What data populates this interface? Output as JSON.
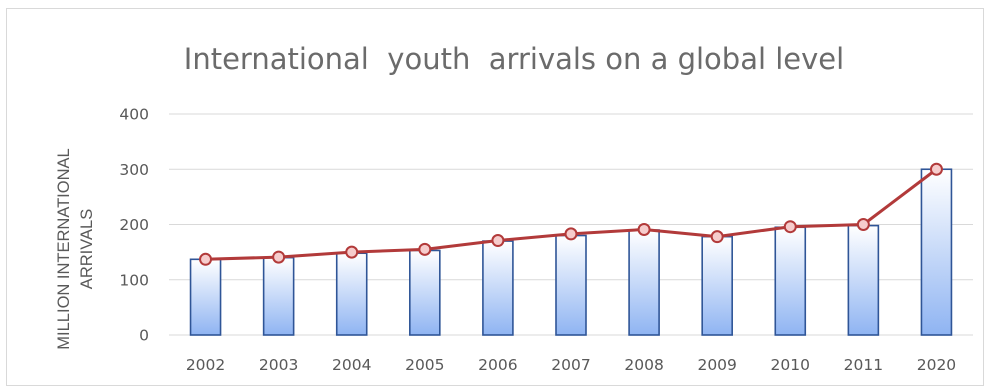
{
  "chart_data": {
    "type": "bar",
    "title": "International  youth  arrivals on a global level",
    "ylabel_lines": [
      "MILLION INTERNATIONAL",
      "ARRIVALS"
    ],
    "xlabel": "",
    "categories": [
      "2002",
      "2003",
      "2004",
      "2005",
      "2006",
      "2007",
      "2008",
      "2009",
      "2010",
      "2011",
      "2020"
    ],
    "ylim": [
      0,
      400
    ],
    "yticks": [
      0,
      100,
      200,
      300,
      400
    ],
    "grid": true,
    "legend": "none",
    "series": [
      {
        "type": "bar",
        "values": [
          137,
          140,
          148,
          153,
          170,
          180,
          190,
          178,
          195,
          198,
          300
        ]
      },
      {
        "type": "line",
        "values": [
          137,
          141,
          150,
          155,
          171,
          183,
          191,
          178,
          196,
          200,
          300
        ]
      }
    ],
    "colors": {
      "bar_top": "#ffffff",
      "bar_bottom": "#8fb4f2",
      "bar_stroke": "#2f5597",
      "line": "#b23a3a",
      "marker_fill": "#f6cccc",
      "grid": "#d9d9d9"
    }
  }
}
